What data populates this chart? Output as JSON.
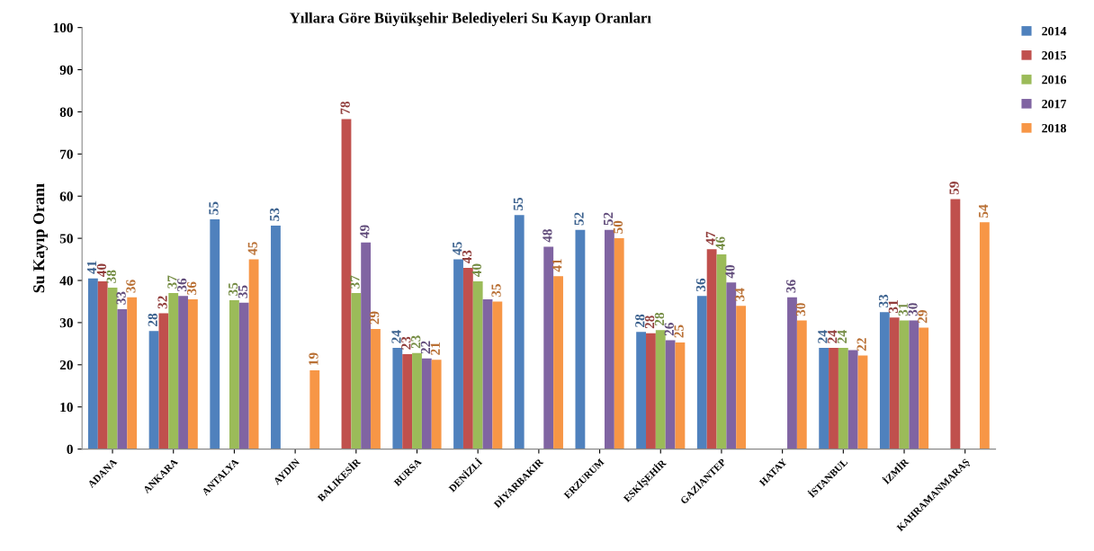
{
  "chart_data": {
    "type": "bar",
    "title": "Yıllara Göre Büyükşehir Belediyeleri Su Kayıp Oranları",
    "ylabel": "Su Kayıp Oranı",
    "categories": [
      "ADANA",
      "ANKARA",
      "ANTALYA",
      "AYDIN",
      "BALIKESİR",
      "BURSA",
      "DENİZLİ",
      "DİYARBAKIR",
      "ERZURUM",
      "ESKİŞEHİR",
      "GAZİANTEP",
      "HATAY",
      "İSTANBUL",
      "İZMİR",
      "KAHRAMANMARAŞ"
    ],
    "series": [
      {
        "name": "2014",
        "color": "#4f81bd",
        "values": [
          40.5,
          28,
          54.5,
          53,
          null,
          24,
          45,
          55.5,
          52,
          27.8,
          36.3,
          null,
          24,
          32.5,
          null
        ],
        "value_labels": [
          "41",
          "28",
          "55",
          "53",
          null,
          "24",
          "45",
          "55",
          "52",
          "28",
          "36",
          null,
          "24",
          "33",
          null
        ]
      },
      {
        "name": "2015",
        "color": "#c0504d",
        "values": [
          39.8,
          32.2,
          null,
          null,
          78.3,
          22.5,
          43,
          null,
          null,
          27.5,
          47.4,
          null,
          24,
          31.2,
          59.3
        ],
        "value_labels": [
          "40",
          "32",
          null,
          null,
          "78",
          "23",
          "43",
          null,
          null,
          "28",
          "47",
          null,
          "24",
          "31",
          "59"
        ]
      },
      {
        "name": "2016",
        "color": "#9bbb59",
        "values": [
          38.3,
          37,
          35.3,
          null,
          37,
          22.8,
          39.8,
          null,
          null,
          28.2,
          46.2,
          null,
          24,
          30.5,
          null
        ],
        "value_labels": [
          "38",
          "37",
          "35",
          null,
          "37",
          "23",
          "40",
          null,
          null,
          "28",
          "46",
          null,
          "24",
          "31",
          null
        ]
      },
      {
        "name": "2017",
        "color": "#8064a2",
        "values": [
          33.2,
          36.3,
          34.7,
          null,
          49,
          21.5,
          35.5,
          48,
          52,
          25.8,
          39.5,
          36,
          23.5,
          30.5,
          null
        ],
        "value_labels": [
          "33",
          "36",
          "35",
          null,
          "49",
          "22",
          null,
          "48",
          "52",
          "26",
          "40",
          "36",
          null,
          "30",
          null
        ]
      },
      {
        "name": "2018",
        "color": "#f79646",
        "values": [
          36,
          35.5,
          45,
          18.7,
          28.5,
          21.2,
          35,
          41,
          50,
          25.3,
          34,
          30.5,
          22.2,
          28.8,
          53.8
        ],
        "value_labels": [
          "36",
          "36",
          "45",
          "19",
          "29",
          "21",
          "35",
          "41",
          "50",
          "25",
          "34",
          "30",
          "22",
          "29",
          "54"
        ]
      }
    ],
    "ylim": [
      0,
      100
    ],
    "yticks": [
      0,
      10,
      20,
      30,
      40,
      50,
      60,
      70,
      80,
      90,
      100
    ],
    "grid": false,
    "legend": "top right"
  }
}
